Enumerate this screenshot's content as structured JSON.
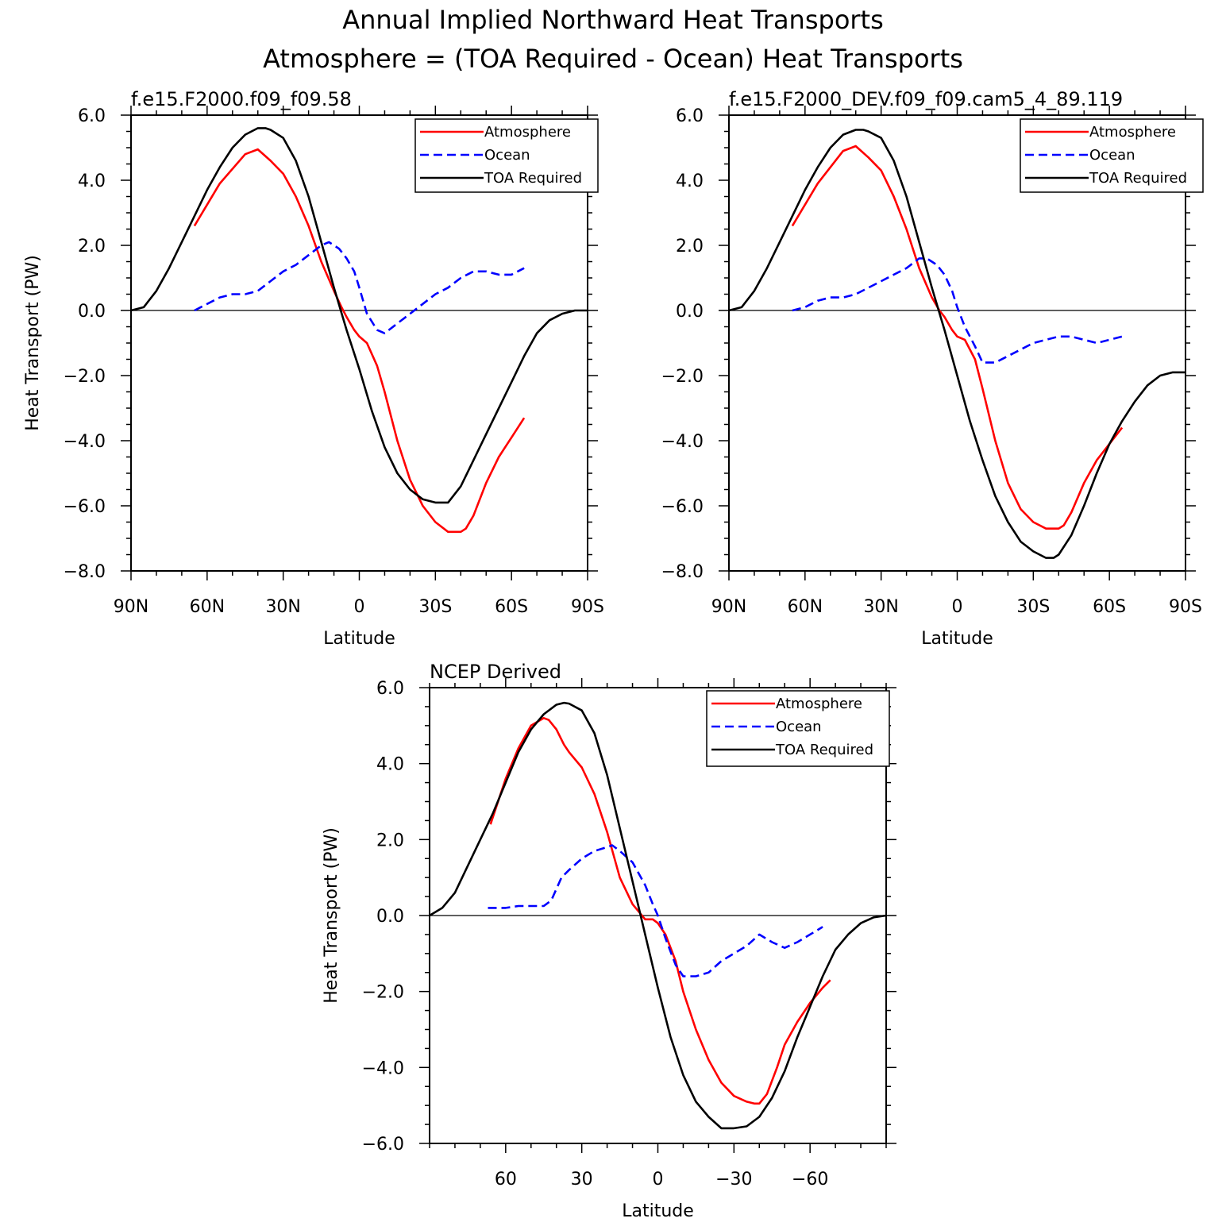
{
  "figure": {
    "title_line1": "Annual Implied Northward Heat Transports",
    "title_line2": "Atmosphere = (TOA Required - Ocean) Heat Transports"
  },
  "chart_data": [
    {
      "type": "line",
      "panel": "top-left",
      "title": "f.e15.F2000.f09_f09.58",
      "xlabel": "Latitude",
      "ylabel": "Heat Transport (PW)",
      "xlim": [
        90,
        -90
      ],
      "ylim": [
        -8,
        6
      ],
      "xticks": [
        90,
        60,
        30,
        0,
        -30,
        -60,
        -90
      ],
      "xtick_labels": [
        "90N",
        "60N",
        "30N",
        "0",
        "30S",
        "60S",
        "90S"
      ],
      "yticks": [
        6,
        4,
        2,
        0,
        -2,
        -4,
        -6,
        -8
      ],
      "ytick_labels": [
        "6.0",
        "4.0",
        "2.0",
        "0.0",
        "−2.0",
        "−4.0",
        "−6.0",
        "−8.0"
      ],
      "legend_position": "top-right",
      "series": [
        {
          "name": "Atmosphere",
          "color": "#ff0000",
          "dash": "solid",
          "x": [
            65,
            55,
            45,
            40,
            35,
            30,
            25,
            20,
            15,
            10,
            7,
            5,
            2,
            0,
            -3,
            -7,
            -10,
            -15,
            -20,
            -25,
            -30,
            -35,
            -40,
            -42,
            -45,
            -50,
            -55,
            -60,
            -65
          ],
          "y": [
            2.6,
            3.9,
            4.8,
            4.95,
            4.6,
            4.2,
            3.5,
            2.6,
            1.5,
            0.6,
            0.1,
            -0.2,
            -0.6,
            -0.8,
            -1.0,
            -1.7,
            -2.5,
            -4.0,
            -5.2,
            -6.0,
            -6.5,
            -6.8,
            -6.8,
            -6.7,
            -6.3,
            -5.3,
            -4.5,
            -3.9,
            -3.3
          ]
        },
        {
          "name": "Ocean",
          "color": "#0000ff",
          "dash": "dashed",
          "x": [
            65,
            60,
            55,
            50,
            45,
            40,
            35,
            30,
            25,
            20,
            15,
            12,
            8,
            5,
            2,
            0,
            -3,
            -7,
            -10,
            -15,
            -20,
            -25,
            -30,
            -35,
            -40,
            -45,
            -50,
            -55,
            -60,
            -65
          ],
          "y": [
            0.0,
            0.2,
            0.4,
            0.5,
            0.5,
            0.6,
            0.9,
            1.2,
            1.4,
            1.7,
            2.0,
            2.1,
            1.9,
            1.6,
            1.2,
            0.7,
            -0.1,
            -0.6,
            -0.7,
            -0.4,
            -0.1,
            0.2,
            0.5,
            0.7,
            1.0,
            1.2,
            1.2,
            1.1,
            1.1,
            1.3
          ]
        },
        {
          "name": "TOA Required",
          "color": "#000000",
          "dash": "solid",
          "x": [
            90,
            85,
            80,
            75,
            70,
            65,
            60,
            55,
            50,
            45,
            40,
            37,
            35,
            30,
            25,
            20,
            15,
            10,
            5,
            0,
            -5,
            -10,
            -15,
            -20,
            -25,
            -30,
            -35,
            -40,
            -45,
            -50,
            -55,
            -60,
            -65,
            -70,
            -75,
            -80,
            -85,
            -90
          ],
          "y": [
            0.0,
            0.1,
            0.6,
            1.3,
            2.1,
            2.9,
            3.7,
            4.4,
            5.0,
            5.4,
            5.6,
            5.6,
            5.55,
            5.3,
            4.6,
            3.5,
            2.1,
            0.7,
            -0.6,
            -1.8,
            -3.1,
            -4.2,
            -5.0,
            -5.5,
            -5.8,
            -5.9,
            -5.9,
            -5.4,
            -4.6,
            -3.8,
            -3.0,
            -2.2,
            -1.4,
            -0.7,
            -0.3,
            -0.1,
            0.0,
            0.0
          ]
        }
      ]
    },
    {
      "type": "line",
      "panel": "top-right",
      "title": "f.e15.F2000_DEV.f09_f09.cam5_4_89.119",
      "xlabel": "Latitude",
      "ylabel": "",
      "xlim": [
        90,
        -90
      ],
      "ylim": [
        -8,
        6
      ],
      "xticks": [
        90,
        60,
        30,
        0,
        -30,
        -60,
        -90
      ],
      "xtick_labels": [
        "90N",
        "60N",
        "30N",
        "0",
        "30S",
        "60S",
        "90S"
      ],
      "yticks": [
        6,
        4,
        2,
        0,
        -2,
        -4,
        -6,
        -8
      ],
      "ytick_labels": [
        "6.0",
        "4.0",
        "2.0",
        "0.0",
        "−2.0",
        "−4.0",
        "−6.0",
        "−8.0"
      ],
      "legend_position": "top-right",
      "series": [
        {
          "name": "Atmosphere",
          "color": "#ff0000",
          "dash": "solid",
          "x": [
            65,
            55,
            45,
            40,
            35,
            30,
            25,
            20,
            15,
            10,
            7,
            5,
            2,
            0,
            -3,
            -7,
            -10,
            -15,
            -20,
            -25,
            -30,
            -35,
            -40,
            -42,
            -45,
            -50,
            -55,
            -60,
            -65
          ],
          "y": [
            2.6,
            3.9,
            4.9,
            5.05,
            4.7,
            4.3,
            3.5,
            2.5,
            1.3,
            0.4,
            0.0,
            -0.2,
            -0.6,
            -0.8,
            -0.9,
            -1.5,
            -2.4,
            -4.0,
            -5.3,
            -6.1,
            -6.5,
            -6.7,
            -6.7,
            -6.6,
            -6.2,
            -5.3,
            -4.6,
            -4.1,
            -3.6
          ]
        },
        {
          "name": "Ocean",
          "color": "#0000ff",
          "dash": "dashed",
          "x": [
            65,
            60,
            55,
            50,
            45,
            40,
            35,
            30,
            25,
            20,
            15,
            12,
            8,
            5,
            2,
            0,
            -3,
            -7,
            -10,
            -15,
            -20,
            -25,
            -30,
            -35,
            -40,
            -45,
            -50,
            -55,
            -60,
            -65
          ],
          "y": [
            0.0,
            0.1,
            0.3,
            0.4,
            0.4,
            0.5,
            0.7,
            0.9,
            1.1,
            1.3,
            1.6,
            1.6,
            1.4,
            1.1,
            0.6,
            0.1,
            -0.5,
            -1.1,
            -1.6,
            -1.6,
            -1.4,
            -1.2,
            -1.0,
            -0.9,
            -0.8,
            -0.8,
            -0.9,
            -1.0,
            -0.9,
            -0.8
          ]
        },
        {
          "name": "TOA Required",
          "color": "#000000",
          "dash": "solid",
          "x": [
            90,
            85,
            80,
            75,
            70,
            65,
            60,
            55,
            50,
            45,
            40,
            37,
            35,
            30,
            25,
            20,
            15,
            10,
            5,
            0,
            -5,
            -10,
            -15,
            -20,
            -25,
            -30,
            -35,
            -38,
            -40,
            -45,
            -50,
            -55,
            -60,
            -65,
            -70,
            -75,
            -80,
            -85,
            -90
          ],
          "y": [
            0.0,
            0.1,
            0.6,
            1.3,
            2.1,
            2.9,
            3.7,
            4.4,
            5.0,
            5.4,
            5.55,
            5.55,
            5.5,
            5.3,
            4.6,
            3.5,
            2.1,
            0.7,
            -0.6,
            -2.0,
            -3.4,
            -4.6,
            -5.7,
            -6.5,
            -7.1,
            -7.4,
            -7.6,
            -7.6,
            -7.5,
            -6.9,
            -6.0,
            -5.0,
            -4.1,
            -3.4,
            -2.8,
            -2.3,
            -2.0,
            -1.9,
            -1.9
          ]
        }
      ]
    },
    {
      "type": "line",
      "panel": "bottom",
      "title": "NCEP Derived",
      "xlabel": "Latitude",
      "ylabel": "Heat Transport (PW)",
      "xlim": [
        90,
        -90
      ],
      "ylim": [
        -6,
        6
      ],
      "xticks": [
        60,
        30,
        0,
        -30,
        -60
      ],
      "xtick_labels": [
        "60",
        "30",
        "0",
        "−30",
        "−60"
      ],
      "yticks": [
        6,
        4,
        2,
        0,
        -2,
        -4,
        -6
      ],
      "ytick_labels": [
        "6.0",
        "4.0",
        "2.0",
        "0.0",
        "−2.0",
        "−4.0",
        "−6.0"
      ],
      "legend_position": "top-right",
      "series": [
        {
          "name": "Atmosphere",
          "color": "#ff0000",
          "dash": "solid",
          "x": [
            66,
            60,
            55,
            50,
            45,
            43,
            40,
            37,
            35,
            30,
            25,
            20,
            15,
            10,
            5,
            2,
            0,
            -3,
            -7,
            -10,
            -15,
            -20,
            -25,
            -30,
            -35,
            -38,
            -40,
            -43,
            -47,
            -50,
            -55,
            -60,
            -65,
            -68
          ],
          "y": [
            2.4,
            3.6,
            4.4,
            5.0,
            5.2,
            5.15,
            4.9,
            4.5,
            4.3,
            3.9,
            3.2,
            2.2,
            1.0,
            0.3,
            -0.1,
            -0.1,
            -0.2,
            -0.5,
            -1.2,
            -2.0,
            -3.0,
            -3.8,
            -4.4,
            -4.75,
            -4.9,
            -4.95,
            -4.95,
            -4.7,
            -4.0,
            -3.4,
            -2.8,
            -2.3,
            -1.9,
            -1.7
          ]
        },
        {
          "name": "Ocean",
          "color": "#0000ff",
          "dash": "dashed",
          "x": [
            67,
            60,
            55,
            50,
            45,
            42,
            38,
            35,
            30,
            25,
            20,
            18,
            15,
            10,
            5,
            2,
            0,
            -3,
            -7,
            -10,
            -15,
            -20,
            -25,
            -30,
            -35,
            -40,
            -45,
            -50,
            -55,
            -60,
            -65
          ],
          "y": [
            0.2,
            0.2,
            0.25,
            0.25,
            0.25,
            0.4,
            1.0,
            1.2,
            1.5,
            1.7,
            1.8,
            1.85,
            1.7,
            1.4,
            0.8,
            0.3,
            0.0,
            -0.6,
            -1.3,
            -1.6,
            -1.6,
            -1.5,
            -1.2,
            -1.0,
            -0.8,
            -0.5,
            -0.7,
            -0.85,
            -0.7,
            -0.5,
            -0.3
          ]
        },
        {
          "name": "TOA Required",
          "color": "#000000",
          "dash": "solid",
          "x": [
            90,
            85,
            80,
            75,
            70,
            65,
            60,
            55,
            50,
            45,
            40,
            37,
            35,
            30,
            25,
            20,
            15,
            10,
            5,
            0,
            -5,
            -10,
            -15,
            -20,
            -25,
            -30,
            -35,
            -40,
            -45,
            -50,
            -55,
            -60,
            -65,
            -70,
            -75,
            -80,
            -85,
            -90
          ],
          "y": [
            0.0,
            0.2,
            0.6,
            1.3,
            2.0,
            2.7,
            3.5,
            4.3,
            4.9,
            5.3,
            5.55,
            5.6,
            5.58,
            5.4,
            4.8,
            3.7,
            2.3,
            0.9,
            -0.5,
            -1.9,
            -3.2,
            -4.2,
            -4.9,
            -5.3,
            -5.6,
            -5.6,
            -5.55,
            -5.3,
            -4.8,
            -4.1,
            -3.2,
            -2.4,
            -1.6,
            -0.9,
            -0.5,
            -0.2,
            -0.05,
            0.0
          ]
        }
      ]
    }
  ]
}
